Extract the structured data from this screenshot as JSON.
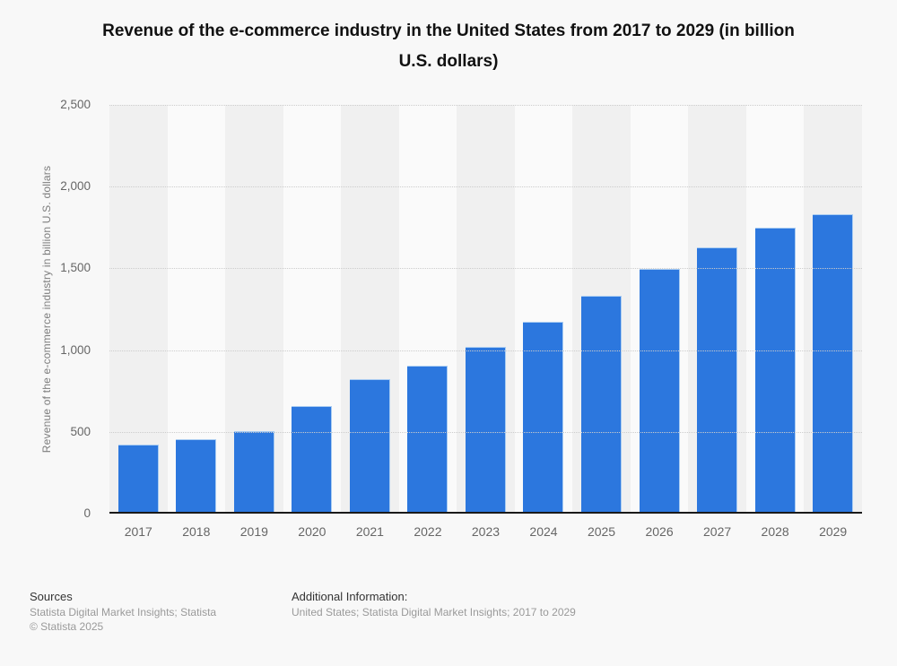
{
  "header": {
    "title_line1": "Revenue of the e-commerce industry in the United States from 2017 to 2029 (in billion",
    "title_line2": "U.S. dollars)"
  },
  "chart_data": {
    "type": "bar",
    "title": "Revenue of the e-commerce industry in the United States from 2017 to 2029 (in billion U.S. dollars)",
    "categories": [
      "2017",
      "2018",
      "2019",
      "2020",
      "2021",
      "2022",
      "2023",
      "2024",
      "2025",
      "2026",
      "2027",
      "2028",
      "2029"
    ],
    "values": [
      420,
      455,
      505,
      660,
      825,
      905,
      1020,
      1175,
      1335,
      1495,
      1630,
      1750,
      1830
    ],
    "xlabel": "",
    "ylabel": "Revenue of the e-commerce industry in billion U.S. dollars",
    "ylim": [
      0,
      2500
    ],
    "y_ticks": [
      "0",
      "500",
      "1,000",
      "1,500",
      "2,000",
      "2,500"
    ],
    "grid": "horizontal-dotted",
    "legend": "none",
    "bar_color": "#2C77DE"
  },
  "footer": {
    "sources_label": "Sources",
    "sources_text": "Statista Digital Market Insights; Statista",
    "copyright": "© Statista 2025",
    "additional_label": "Additional Information:",
    "additional_text": "United States; Statista Digital Market Insights; 2017 to 2029"
  },
  "colors": {
    "bar": "#2C77DE",
    "bar_edge": "#a9ccf2",
    "page_bg": "#f8f8f8",
    "band_dark": "#f0f0f0",
    "band_light": "#fafafa",
    "gridline": "#cccccc",
    "axis": "#1a1a1a",
    "title_text": "#111111",
    "tick_text": "#666666",
    "muted_text": "#9a9a9a",
    "footer_heading": "#333333"
  }
}
